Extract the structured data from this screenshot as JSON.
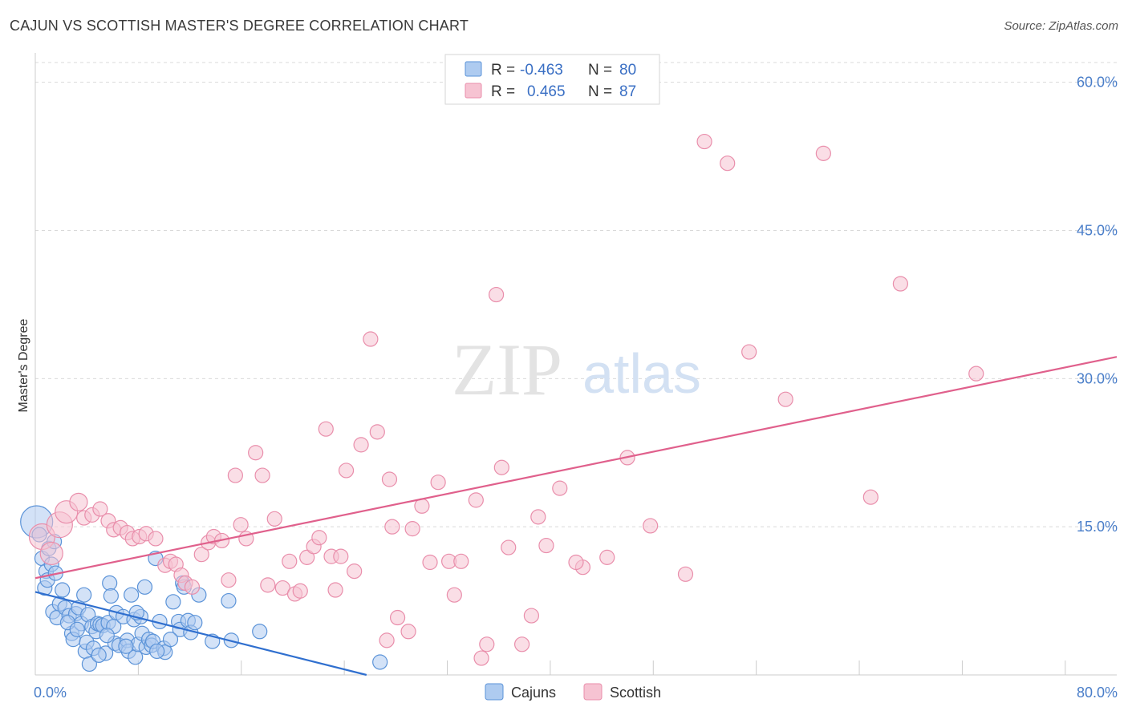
{
  "title": "CAJUN VS SCOTTISH MASTER'S DEGREE CORRELATION CHART",
  "source": "Source: ZipAtlas.com",
  "watermark": {
    "zip": "ZIP",
    "atlas": "atlas"
  },
  "colors": {
    "cajuns_fill": "#aecbf0",
    "cajuns_stroke": "#5b93d8",
    "cajuns_line": "#2f6fcf",
    "scottish_fill": "#f6c3d2",
    "scottish_stroke": "#e98eab",
    "scottish_line": "#e0608c",
    "tick_text": "#4a7ec9",
    "grid": "#d9d9d9"
  },
  "legend": {
    "rows": [
      {
        "r_label": "R =",
        "r_value": "-0.463",
        "n_label": "N =",
        "n_value": "80"
      },
      {
        "r_label": "R =",
        "r_value": "0.465",
        "n_label": "N =",
        "n_value": "87"
      }
    ]
  },
  "chart_data": {
    "type": "scatter",
    "title": "CAJUN VS SCOTTISH MASTER'S DEGREE CORRELATION CHART",
    "xlabel": "",
    "ylabel": "Master's Degree",
    "xlim": [
      0,
      80
    ],
    "ylim": [
      0,
      62
    ],
    "x_tick_labels": [
      "0.0%",
      "80.0%"
    ],
    "y_ticks": [
      15,
      30,
      45,
      60
    ],
    "y_tick_labels": [
      "15.0%",
      "30.0%",
      "45.0%",
      "60.0%"
    ],
    "grid": true,
    "legend_position": "top-center",
    "series": [
      {
        "name": "Cajuns",
        "r": -0.463,
        "n": 80,
        "trend": {
          "x": [
            0,
            24.5
          ],
          "y": [
            8.4,
            0
          ]
        },
        "points": [
          [
            0.1,
            15.5
          ],
          [
            0.5,
            11.8
          ],
          [
            0.8,
            10.5
          ],
          [
            1.0,
            12.8
          ],
          [
            1.2,
            11.2
          ],
          [
            1.4,
            13.5
          ],
          [
            0.7,
            8.8
          ],
          [
            1.3,
            6.4
          ],
          [
            1.6,
            5.8
          ],
          [
            1.8,
            7.2
          ],
          [
            2.0,
            8.6
          ],
          [
            2.2,
            6.8
          ],
          [
            2.5,
            6.0
          ],
          [
            2.7,
            4.2
          ],
          [
            2.8,
            3.6
          ],
          [
            3.0,
            6.2
          ],
          [
            3.2,
            6.8
          ],
          [
            3.4,
            5.2
          ],
          [
            3.6,
            8.1
          ],
          [
            3.7,
            2.4
          ],
          [
            3.8,
            3.3
          ],
          [
            3.9,
            6.1
          ],
          [
            4.2,
            4.9
          ],
          [
            4.3,
            2.7
          ],
          [
            4.5,
            4.4
          ],
          [
            4.6,
            5.2
          ],
          [
            4.8,
            5.1
          ],
          [
            5.0,
            5.0
          ],
          [
            5.2,
            2.2
          ],
          [
            5.4,
            5.3
          ],
          [
            5.5,
            9.3
          ],
          [
            5.6,
            8.0
          ],
          [
            5.8,
            4.9
          ],
          [
            5.9,
            3.2
          ],
          [
            6.0,
            6.3
          ],
          [
            6.2,
            3.0
          ],
          [
            6.5,
            5.9
          ],
          [
            6.8,
            3.5
          ],
          [
            6.9,
            2.4
          ],
          [
            7.1,
            8.1
          ],
          [
            7.3,
            5.6
          ],
          [
            7.4,
            1.8
          ],
          [
            7.6,
            3.1
          ],
          [
            7.8,
            5.9
          ],
          [
            7.9,
            4.2
          ],
          [
            8.1,
            8.9
          ],
          [
            8.2,
            2.8
          ],
          [
            8.4,
            3.6
          ],
          [
            8.6,
            3.0
          ],
          [
            8.7,
            3.4
          ],
          [
            8.9,
            11.8
          ],
          [
            9.2,
            5.4
          ],
          [
            9.5,
            2.7
          ],
          [
            9.6,
            2.3
          ],
          [
            10.2,
            7.4
          ],
          [
            10.6,
            5.4
          ],
          [
            10.7,
            4.6
          ],
          [
            10.9,
            9.3
          ],
          [
            11.3,
            5.5
          ],
          [
            11.5,
            4.3
          ],
          [
            11.8,
            5.3
          ],
          [
            12.1,
            8.1
          ],
          [
            13.1,
            3.4
          ],
          [
            14.3,
            7.5
          ],
          [
            14.5,
            3.5
          ],
          [
            16.6,
            4.4
          ],
          [
            0.3,
            14.2
          ],
          [
            0.9,
            9.6
          ],
          [
            1.5,
            10.3
          ],
          [
            2.4,
            5.3
          ],
          [
            3.1,
            4.6
          ],
          [
            4.0,
            1.1
          ],
          [
            4.7,
            2.0
          ],
          [
            5.3,
            4.0
          ],
          [
            6.7,
            2.9
          ],
          [
            7.5,
            6.3
          ],
          [
            9.0,
            2.4
          ],
          [
            10.0,
            3.6
          ],
          [
            11.0,
            8.9
          ],
          [
            25.5,
            1.3
          ]
        ],
        "radius": [
          20,
          9,
          9,
          9,
          9,
          9,
          9,
          9,
          9,
          9,
          9,
          9,
          9,
          9,
          9,
          9,
          9,
          9,
          9,
          9,
          9,
          9,
          9,
          9,
          9,
          9,
          9,
          9,
          9,
          9,
          9,
          9,
          9,
          9,
          9,
          9,
          9,
          9,
          9,
          9,
          9,
          9,
          9,
          9,
          9,
          9,
          9,
          9,
          9,
          9,
          9,
          9,
          9,
          9,
          9,
          9,
          9,
          9,
          9,
          9,
          9,
          9,
          9,
          9,
          9,
          9,
          9,
          9,
          9,
          9,
          9,
          9,
          9,
          9,
          9,
          9,
          9,
          9,
          9,
          9
        ]
      },
      {
        "name": "Scottish",
        "r": 0.465,
        "n": 87,
        "trend": {
          "x": [
            0,
            80
          ],
          "y": [
            9.8,
            32.2
          ]
        },
        "points": [
          [
            0.5,
            14.0
          ],
          [
            1.2,
            12.3
          ],
          [
            1.8,
            15.2
          ],
          [
            2.3,
            16.5
          ],
          [
            3.2,
            17.5
          ],
          [
            3.6,
            15.9
          ],
          [
            4.2,
            16.2
          ],
          [
            4.8,
            16.8
          ],
          [
            5.4,
            15.6
          ],
          [
            5.8,
            14.7
          ],
          [
            6.3,
            14.9
          ],
          [
            6.8,
            14.4
          ],
          [
            7.2,
            13.8
          ],
          [
            7.7,
            14.0
          ],
          [
            8.2,
            14.3
          ],
          [
            8.9,
            13.8
          ],
          [
            9.6,
            11.1
          ],
          [
            10.0,
            11.5
          ],
          [
            10.4,
            11.2
          ],
          [
            10.8,
            10.1
          ],
          [
            11.1,
            9.3
          ],
          [
            11.6,
            8.9
          ],
          [
            12.3,
            12.2
          ],
          [
            12.8,
            13.4
          ],
          [
            13.2,
            14.0
          ],
          [
            13.8,
            13.6
          ],
          [
            14.3,
            9.6
          ],
          [
            14.8,
            20.2
          ],
          [
            15.2,
            15.2
          ],
          [
            15.6,
            13.8
          ],
          [
            16.3,
            22.5
          ],
          [
            16.8,
            20.2
          ],
          [
            17.2,
            9.1
          ],
          [
            17.7,
            15.8
          ],
          [
            18.3,
            8.8
          ],
          [
            18.8,
            11.5
          ],
          [
            19.2,
            8.2
          ],
          [
            19.6,
            8.5
          ],
          [
            20.1,
            11.9
          ],
          [
            20.6,
            13.0
          ],
          [
            21.0,
            13.9
          ],
          [
            21.5,
            24.9
          ],
          [
            21.9,
            12.0
          ],
          [
            22.2,
            8.6
          ],
          [
            23.0,
            20.7
          ],
          [
            23.6,
            10.5
          ],
          [
            24.1,
            23.3
          ],
          [
            24.8,
            34.0
          ],
          [
            25.3,
            24.6
          ],
          [
            26.0,
            3.5
          ],
          [
            26.4,
            15.0
          ],
          [
            26.8,
            5.8
          ],
          [
            27.6,
            4.4
          ],
          [
            27.9,
            14.8
          ],
          [
            28.6,
            17.1
          ],
          [
            29.2,
            11.4
          ],
          [
            30.6,
            11.5
          ],
          [
            31.0,
            8.1
          ],
          [
            31.5,
            11.5
          ],
          [
            32.6,
            17.7
          ],
          [
            33.0,
            1.7
          ],
          [
            33.4,
            3.1
          ],
          [
            34.1,
            38.5
          ],
          [
            34.5,
            21.0
          ],
          [
            35.0,
            12.9
          ],
          [
            36.0,
            3.1
          ],
          [
            36.7,
            6.0
          ],
          [
            37.2,
            16.0
          ],
          [
            37.8,
            13.1
          ],
          [
            38.8,
            18.9
          ],
          [
            40.5,
            10.9
          ],
          [
            42.3,
            11.9
          ],
          [
            43.8,
            22.0
          ],
          [
            45.5,
            15.1
          ],
          [
            48.1,
            10.2
          ],
          [
            49.5,
            54.0
          ],
          [
            51.2,
            51.8
          ],
          [
            52.8,
            32.7
          ],
          [
            55.5,
            27.9
          ],
          [
            58.3,
            52.8
          ],
          [
            61.8,
            18.0
          ],
          [
            64.0,
            39.6
          ],
          [
            69.6,
            30.5
          ],
          [
            22.6,
            12.0
          ],
          [
            26.2,
            19.8
          ],
          [
            29.8,
            19.5
          ],
          [
            40.0,
            11.4
          ]
        ],
        "radius": [
          16,
          14,
          16,
          14,
          11,
          9,
          9,
          9,
          9,
          9,
          9,
          9,
          9,
          9,
          9,
          9,
          9,
          9,
          9,
          9,
          9,
          9,
          9,
          9,
          9,
          9,
          9,
          9,
          9,
          9,
          9,
          9,
          9,
          9,
          9,
          9,
          9,
          9,
          9,
          9,
          9,
          9,
          9,
          9,
          9,
          9,
          9,
          9,
          9,
          9,
          9,
          9,
          9,
          9,
          9,
          9,
          9,
          9,
          9,
          9,
          9,
          9,
          9,
          9,
          9,
          9,
          9,
          9,
          9,
          9,
          9,
          9,
          9,
          9,
          9,
          9,
          9,
          9,
          9,
          9,
          9,
          9,
          9,
          9,
          9,
          9,
          9
        ]
      }
    ]
  }
}
